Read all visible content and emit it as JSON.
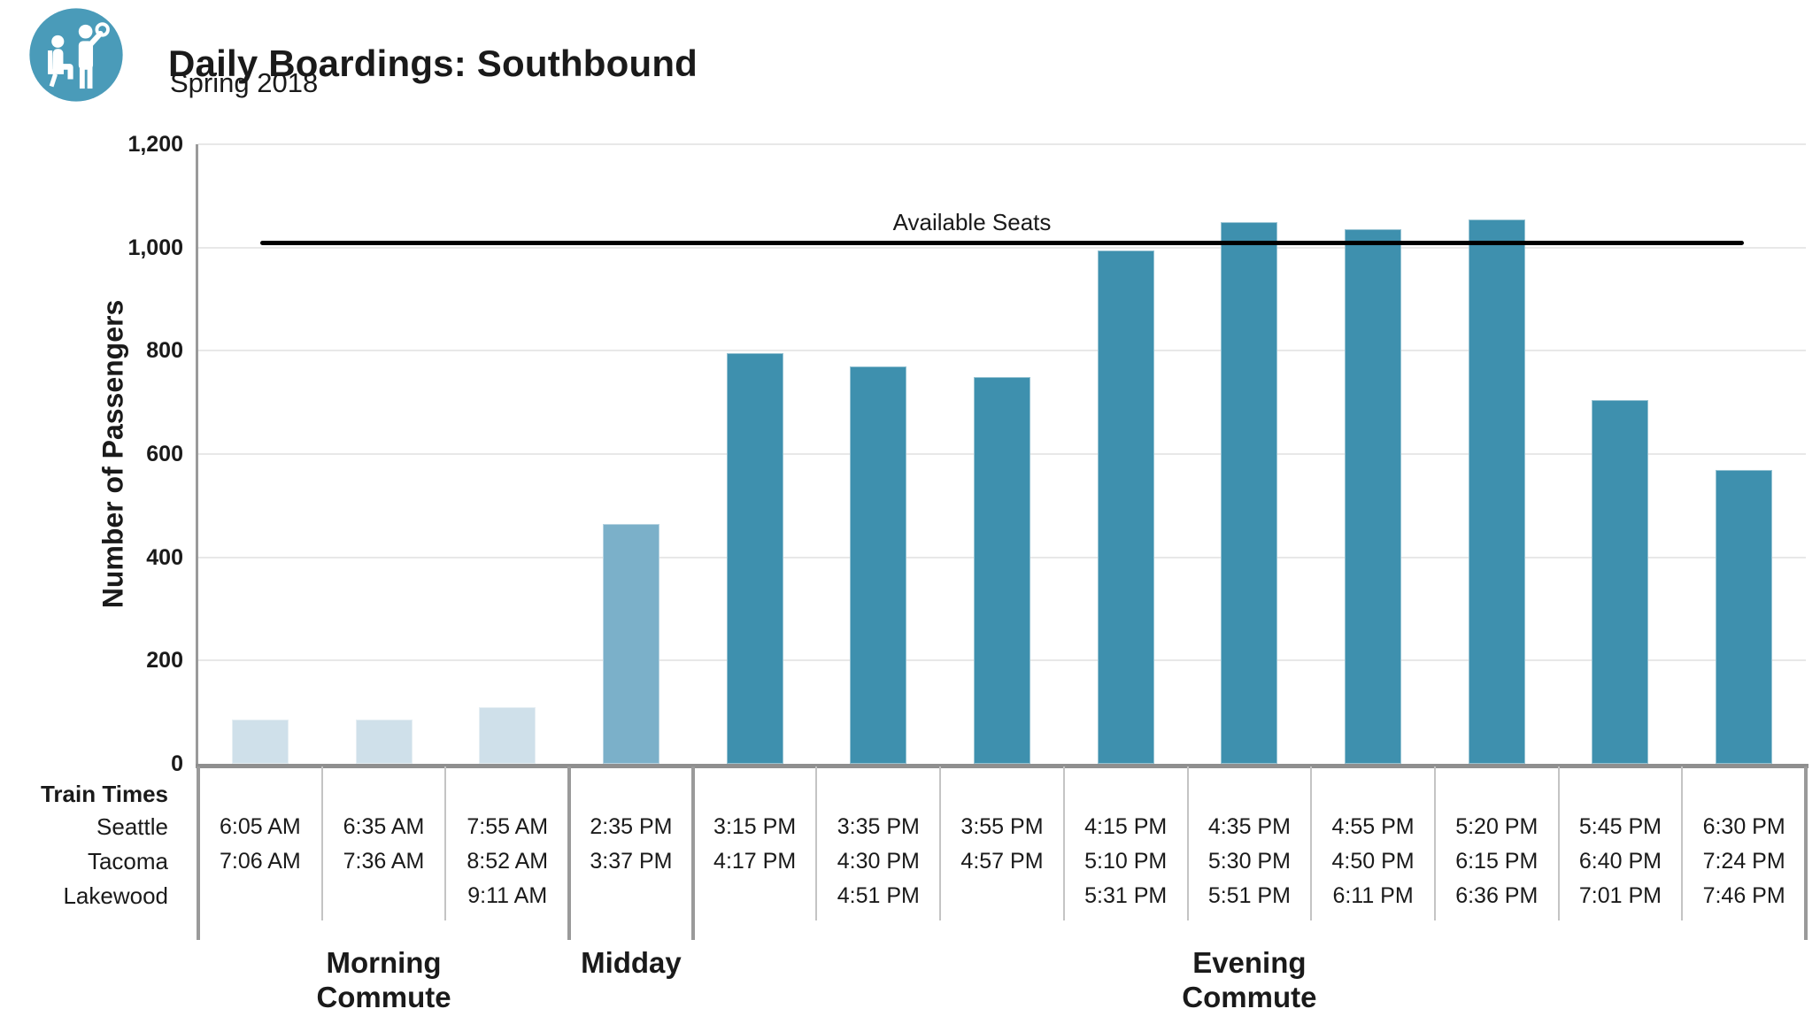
{
  "header": {
    "logo_icon": "transit-passengers-icon"
  },
  "chart_data": {
    "type": "bar",
    "title": "Daily Boardings: Southbound",
    "subtitle": "Spring 2018",
    "xlabel": "",
    "ylabel": "Number of Passengers",
    "ylim": [
      0,
      1200
    ],
    "grid": true,
    "legend": "none",
    "yticks": [
      {
        "value": 0,
        "label": "0"
      },
      {
        "value": 200,
        "label": "200"
      },
      {
        "value": 400,
        "label": "400"
      },
      {
        "value": 600,
        "label": "600"
      },
      {
        "value": 800,
        "label": "800"
      },
      {
        "value": 1000,
        "label": "1,000"
      },
      {
        "value": 1200,
        "label": "1,200"
      }
    ],
    "categories": [
      "6:05 AM",
      "6:35 AM",
      "7:55 AM",
      "2:35 PM",
      "3:15 PM",
      "3:35 PM",
      "3:55 PM",
      "4:15 PM",
      "4:35 PM",
      "4:55 PM",
      "5:20 PM",
      "5:45 PM",
      "6:30 PM"
    ],
    "values": [
      85,
      85,
      110,
      465,
      795,
      770,
      750,
      995,
      1050,
      1035,
      1055,
      705,
      570
    ],
    "groups": [
      {
        "label_lines": [
          "Morning",
          "Commute"
        ],
        "start": 0,
        "end": 2,
        "color": "#cfe0ea"
      },
      {
        "label_lines": [
          "Midday"
        ],
        "start": 3,
        "end": 3,
        "color": "#7bb0c9"
      },
      {
        "label_lines": [
          "Evening",
          "Commute"
        ],
        "start": 4,
        "end": 12,
        "color": "#3e90ae"
      }
    ],
    "reference_line": {
      "label": "Available Seats",
      "value": 1010,
      "color": "#000000"
    }
  },
  "table": {
    "corner_label": "Train Times",
    "rows": [
      {
        "label": "Seattle",
        "times": [
          "6:05 AM",
          "6:35 AM",
          "7:55 AM",
          "2:35 PM",
          "3:15 PM",
          "3:35 PM",
          "3:55 PM",
          "4:15 PM",
          "4:35 PM",
          "4:55 PM",
          "5:20 PM",
          "5:45 PM",
          "6:30 PM"
        ]
      },
      {
        "label": "Tacoma",
        "times": [
          "7:06 AM",
          "7:36 AM",
          "8:52 AM",
          "3:37 PM",
          "4:17 PM",
          "4:30 PM",
          "4:57 PM",
          "5:10 PM",
          "5:30 PM",
          "4:50 PM",
          "6:15 PM",
          "6:40 PM",
          "7:24 PM"
        ]
      },
      {
        "label": "Lakewood",
        "times": [
          "",
          "",
          "9:11 AM",
          "",
          "",
          "4:51 PM",
          "",
          "5:31 PM",
          "5:51 PM",
          "6:11 PM",
          "6:36 PM",
          "7:01 PM",
          "7:46 PM"
        ]
      }
    ]
  },
  "colors": {
    "logo_circle": "#4a9bb9",
    "morning_bar": "#cfe0ea",
    "midday_bar": "#7bb0c9",
    "evening_bar": "#3e90ae",
    "axis": "#9a9a9a",
    "gridline": "#e8e8e8",
    "thin_divider": "#c4c4c4",
    "reference_line": "#000000"
  }
}
